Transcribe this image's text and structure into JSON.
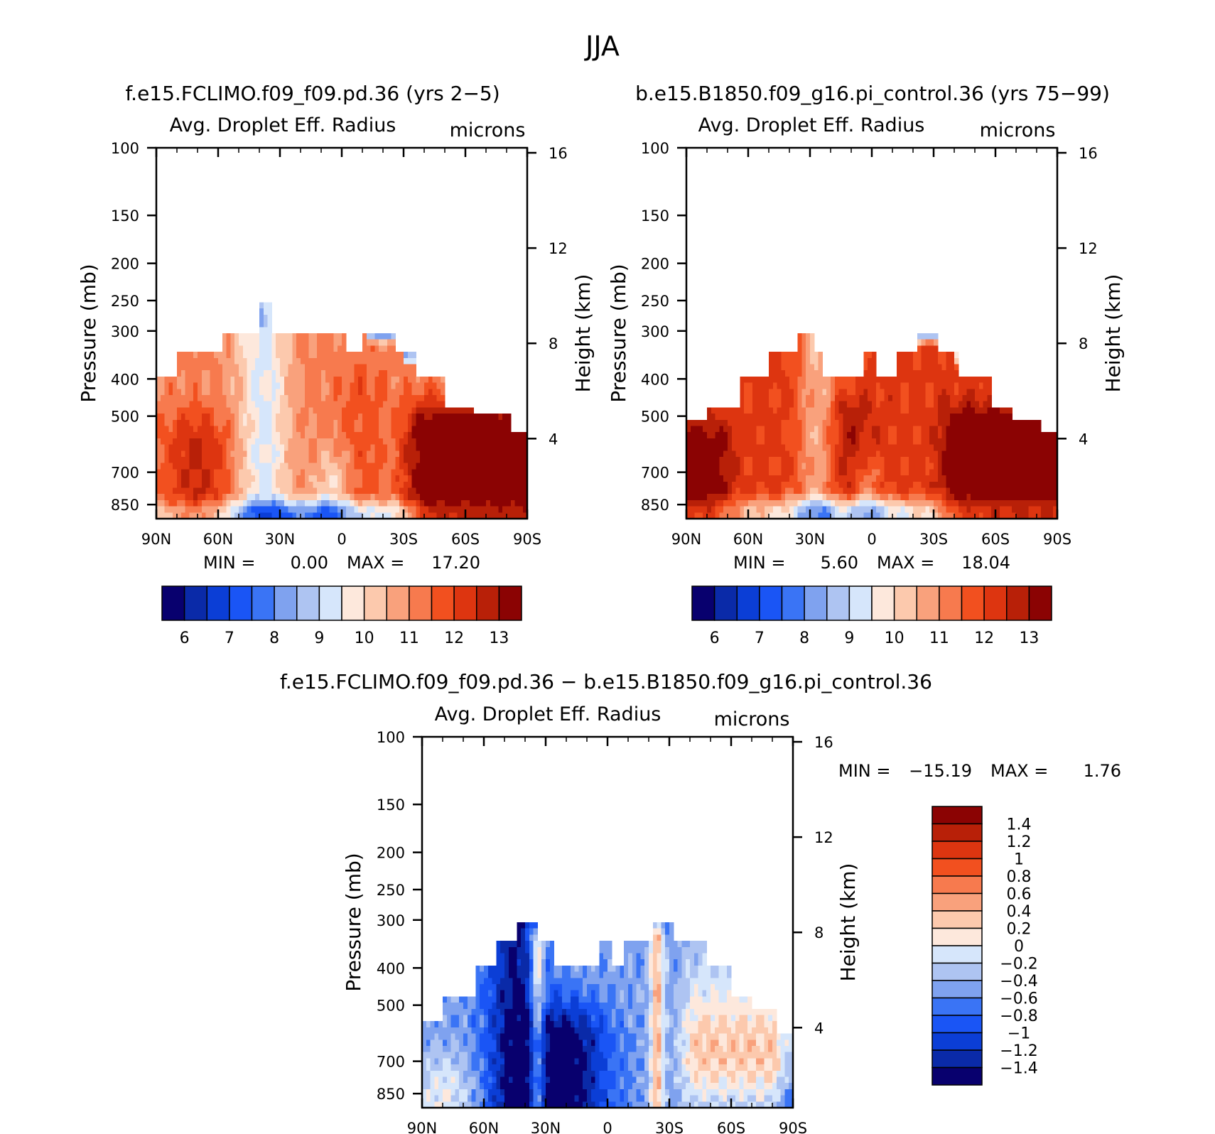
{
  "figure_title": "JJA",
  "colors": {
    "palette": [
      "#08006e",
      "#0a2aa8",
      "#0b3ed6",
      "#1a55f5",
      "#3a74f5",
      "#7fa2ef",
      "#aec4f2",
      "#d6e6fb",
      "#fde8dc",
      "#fcc9ad",
      "#f9a17c",
      "#f77a4e",
      "#f2501f",
      "#dd3510",
      "#b82008",
      "#8b0303"
    ],
    "missing": "#ffffff"
  },
  "chart_data": [
    {
      "type": "heatmap",
      "title": "f.e15.FCLIMO.f09_f09.pd.36 (yrs 2-5)",
      "subtitle_left": "Avg. Droplet Eff. Radius",
      "subtitle_right": "microns",
      "ylabel": "Pressure (mb)",
      "ylabel_right": "Height (km)",
      "x_ticks": [
        "90N",
        "60N",
        "30N",
        "0",
        "30S",
        "60S",
        "90S"
      ],
      "x_range": [
        90,
        -90
      ],
      "y_ticks": [
        "100",
        "150",
        "200",
        "250",
        "300",
        "400",
        "500",
        "700",
        "850"
      ],
      "y_tick_values": [
        100,
        150,
        200,
        250,
        300,
        400,
        500,
        700,
        850
      ],
      "y_range": [
        100,
        925
      ],
      "height_ticks": [
        "16",
        "12",
        "8",
        "4"
      ],
      "height_tick_values": [
        16,
        12,
        8,
        4
      ],
      "min_label": "MIN =",
      "min_value": "0.00",
      "max_label": "MAX =",
      "max_value": "17.20",
      "colorbar": {
        "orientation": "horizontal",
        "labels": [
          "6",
          "7",
          "8",
          "9",
          "10",
          "11",
          "12",
          "13"
        ],
        "levels": [
          5.75,
          6,
          6.25,
          6.5,
          6.75,
          7,
          7.25,
          7.5,
          7.75,
          8,
          8.25,
          8.5,
          8.75,
          9,
          9.25,
          9.5,
          9.75,
          10,
          10.25,
          10.5,
          10.75,
          11,
          11.25,
          11.5,
          11.75,
          12,
          12.25,
          12.5,
          12.75,
          13,
          13.25
        ]
      },
      "field_id": "A"
    },
    {
      "type": "heatmap",
      "title": "b.e15.B1850.f09_g16.pi_control.36 (yrs 75-99)",
      "subtitle_left": "Avg. Droplet Eff. Radius",
      "subtitle_right": "microns",
      "ylabel": "Pressure (mb)",
      "ylabel_right": "Height (km)",
      "x_ticks": [
        "90N",
        "60N",
        "30N",
        "0",
        "30S",
        "60S",
        "90S"
      ],
      "x_range": [
        90,
        -90
      ],
      "y_ticks": [
        "100",
        "150",
        "200",
        "250",
        "300",
        "400",
        "500",
        "700",
        "850"
      ],
      "y_tick_values": [
        100,
        150,
        200,
        250,
        300,
        400,
        500,
        700,
        850
      ],
      "y_range": [
        100,
        925
      ],
      "height_ticks": [
        "16",
        "12",
        "8",
        "4"
      ],
      "height_tick_values": [
        16,
        12,
        8,
        4
      ],
      "min_label": "MIN =",
      "min_value": "5.60",
      "max_label": "MAX =",
      "max_value": "18.04",
      "colorbar": {
        "orientation": "horizontal",
        "labels": [
          "6",
          "7",
          "8",
          "9",
          "10",
          "11",
          "12",
          "13"
        ]
      },
      "field_id": "B"
    },
    {
      "type": "heatmap",
      "title": "f.e15.FCLIMO.f09_f09.pd.36 - b.e15.B1850.f09_g16.pi_control.36",
      "subtitle_left": "Avg. Droplet Eff. Radius",
      "subtitle_right": "microns",
      "ylabel": "Pressure (mb)",
      "ylabel_right": "Height (km)",
      "x_ticks": [
        "90N",
        "60N",
        "30N",
        "0",
        "30S",
        "60S",
        "90S"
      ],
      "x_range": [
        90,
        -90
      ],
      "y_ticks": [
        "100",
        "150",
        "200",
        "250",
        "300",
        "400",
        "500",
        "700",
        "850"
      ],
      "y_tick_values": [
        100,
        150,
        200,
        250,
        300,
        400,
        500,
        700,
        850
      ],
      "y_range": [
        100,
        925
      ],
      "height_ticks": [
        "16",
        "12",
        "8",
        "4"
      ],
      "height_tick_values": [
        16,
        12,
        8,
        4
      ],
      "min_label": "MIN =",
      "min_value": "-15.19",
      "max_label": "MAX =",
      "max_value": "1.76",
      "colorbar": {
        "orientation": "vertical",
        "labels": [
          "1.4",
          "1.2",
          "1",
          "0.8",
          "0.6",
          "0.4",
          "0.2",
          "0",
          "-0.2",
          "-0.4",
          "-0.6",
          "-0.8",
          "-1",
          "-1.2",
          "-1.4"
        ]
      },
      "field_id": "D"
    }
  ]
}
